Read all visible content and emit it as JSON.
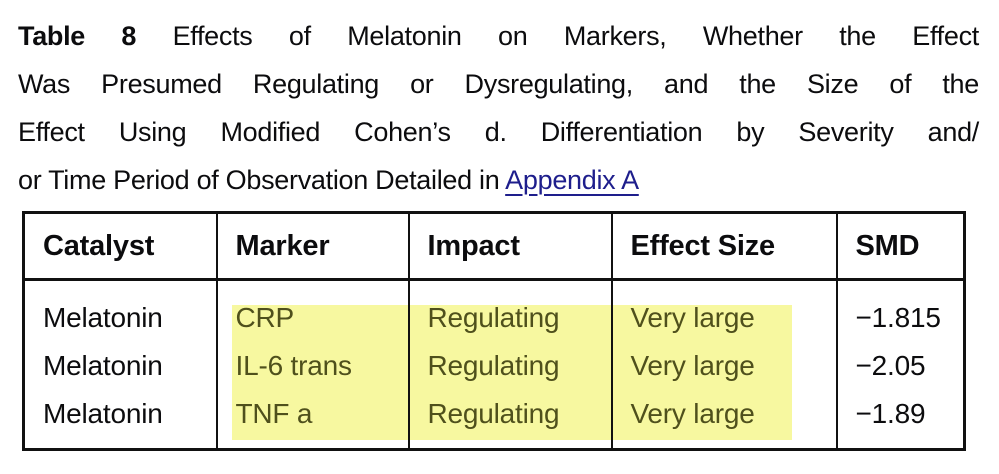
{
  "caption": {
    "line1_bold": "Table 8",
    "line1_text": "Effects of Melatonin on Markers, Whether the Effect",
    "line2_text": "Was Presumed Regulating or Dysregulating, and the Size of the",
    "line3_text": "Effect Using Modified Cohen’s d. Differentiation by Severity and/",
    "line4_text": "or Time Period of Observation Detailed in",
    "line4_link": "Appendix A"
  },
  "table": {
    "headers": [
      "Catalyst",
      "Marker",
      "Impact",
      "Effect Size",
      "SMD"
    ],
    "rows": [
      {
        "catalyst": "Melatonin",
        "marker": "CRP",
        "impact": "Regulating",
        "effect_size": "Very large",
        "smd": "−1.815",
        "highlighted": true
      },
      {
        "catalyst": "Melatonin",
        "marker": "IL-6 trans",
        "impact": "Regulating",
        "effect_size": "Very large",
        "smd": "−2.05",
        "highlighted": true
      },
      {
        "catalyst": "Melatonin",
        "marker": "TNF a",
        "impact": "Regulating",
        "effect_size": "Very large",
        "smd": "−1.89",
        "highlighted": true
      }
    ]
  },
  "colors": {
    "highlight": "#f7f8a0",
    "highlight_text": "#4f501c",
    "link": "#1e1e8c",
    "border": "#111111"
  }
}
